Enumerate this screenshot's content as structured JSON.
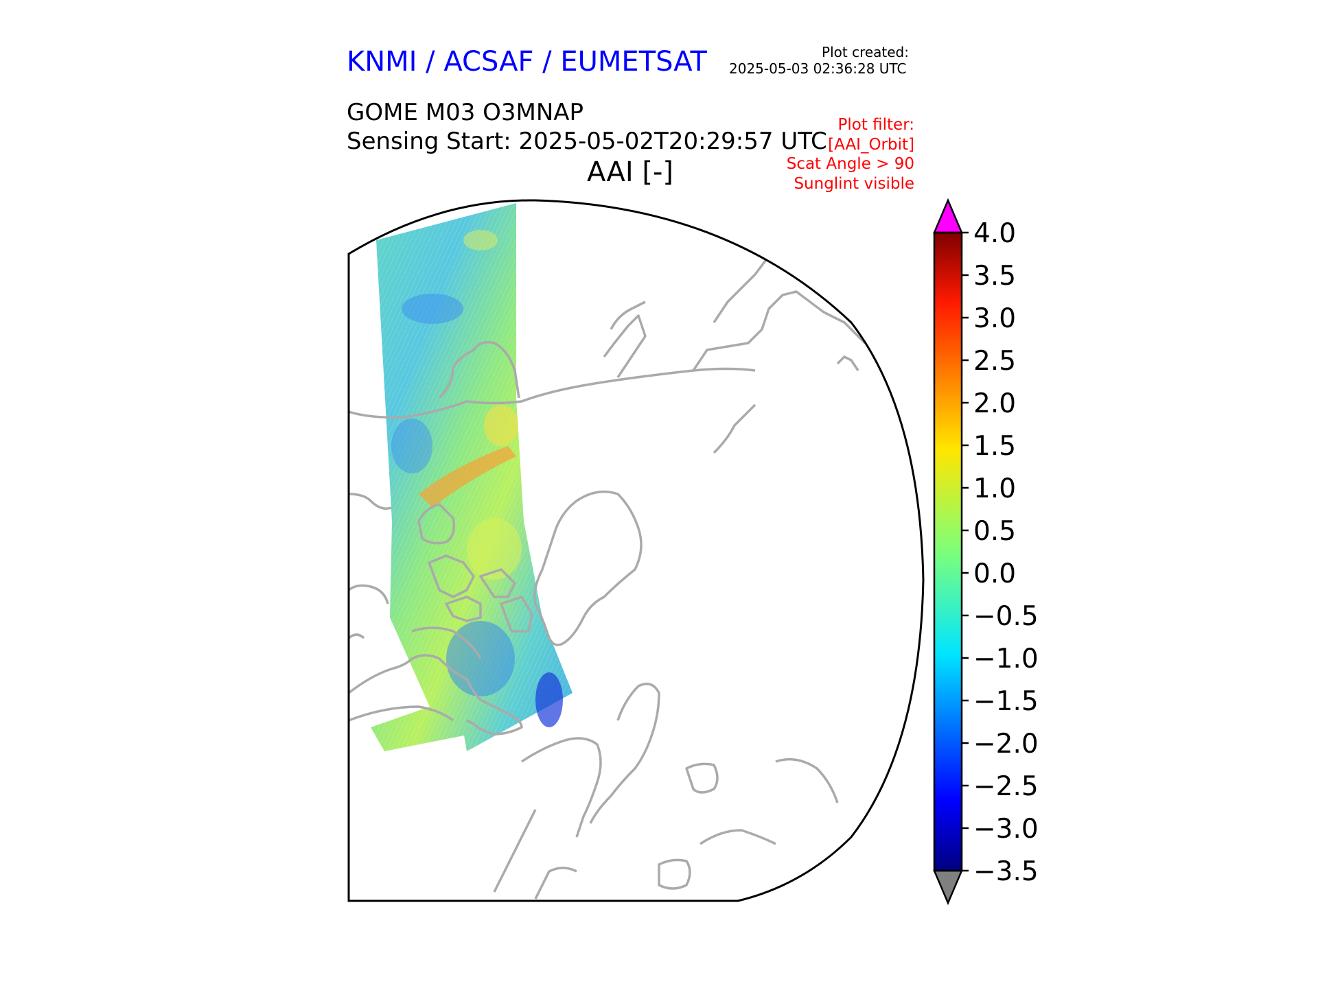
{
  "header": {
    "agency": "KNMI / ACSAF / EUMETSAT",
    "agency_color": "#0000ff",
    "plot_created_label": "Plot created:",
    "plot_created_time": "2025-05-03 02:36:28 UTC",
    "product": "GOME M03 O3MNAP",
    "sensing_start": "Sensing Start: 2025-05-02T20:29:57 UTC",
    "variable_title": "AAI [-]"
  },
  "filter": {
    "color": "#ff0000",
    "lines": [
      "Plot filter:",
      "[AAI_Orbit]",
      "Scat Angle > 90",
      "Sunglint visible"
    ]
  },
  "map": {
    "projection": "north polar stereographic",
    "coastline_color": "#aaaaaa",
    "swath": "single GOME orbit swath over Greenland, Canadian Arctic and North America"
  },
  "colorbar": {
    "min": -3.5,
    "max": 4.0,
    "ticks": [
      "4.0",
      "3.5",
      "3.0",
      "2.5",
      "2.0",
      "1.5",
      "1.0",
      "0.5",
      "0.0",
      "−0.5",
      "−1.0",
      "−1.5",
      "−2.0",
      "−2.5",
      "−3.0",
      "−3.5"
    ],
    "tick_values": [
      4.0,
      3.5,
      3.0,
      2.5,
      2.0,
      1.5,
      1.0,
      0.5,
      0.0,
      -0.5,
      -1.0,
      -1.5,
      -2.0,
      -2.5,
      -3.0,
      -3.5
    ],
    "over_color": "#ff00ff",
    "under_color": "#808080",
    "colormap": "jet"
  }
}
